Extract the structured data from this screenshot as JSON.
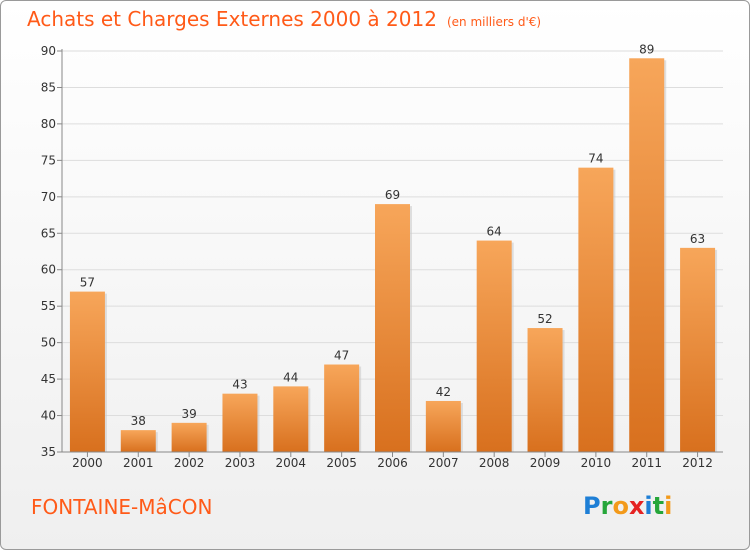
{
  "header": {
    "title": "Achats et Charges Externes 2000 à 2012",
    "subtitle": "(en milliers d'€)"
  },
  "footer": {
    "commune": "FONTAINE-MâCON",
    "logo_letters": [
      {
        "ch": "P",
        "color": "#1e7fd6"
      },
      {
        "ch": "r",
        "color": "#26a63a"
      },
      {
        "ch": "o",
        "color": "#f39a1a"
      },
      {
        "ch": "x",
        "color": "#e52222"
      },
      {
        "ch": "i",
        "color": "#1e7fd6"
      },
      {
        "ch": "t",
        "color": "#26a63a"
      },
      {
        "ch": "i",
        "color": "#f39a1a"
      }
    ]
  },
  "colors": {
    "accent": "#ff5a18",
    "bar_light": "#f7a65a",
    "bar_dark": "#d8701e",
    "grid": "#dddddd"
  },
  "chart_data": {
    "type": "bar",
    "title": "Achats et Charges Externes 2000 à 2012",
    "categories": [
      "2000",
      "2001",
      "2002",
      "2003",
      "2004",
      "2005",
      "2006",
      "2007",
      "2008",
      "2009",
      "2010",
      "2011",
      "2012"
    ],
    "values": [
      57,
      38,
      39,
      43,
      44,
      47,
      69,
      42,
      64,
      52,
      74,
      89,
      63
    ],
    "ylim": [
      35,
      90
    ],
    "yticks": [
      35,
      40,
      45,
      50,
      55,
      60,
      65,
      70,
      75,
      80,
      85,
      90
    ],
    "grid": true,
    "data_labels": true
  }
}
